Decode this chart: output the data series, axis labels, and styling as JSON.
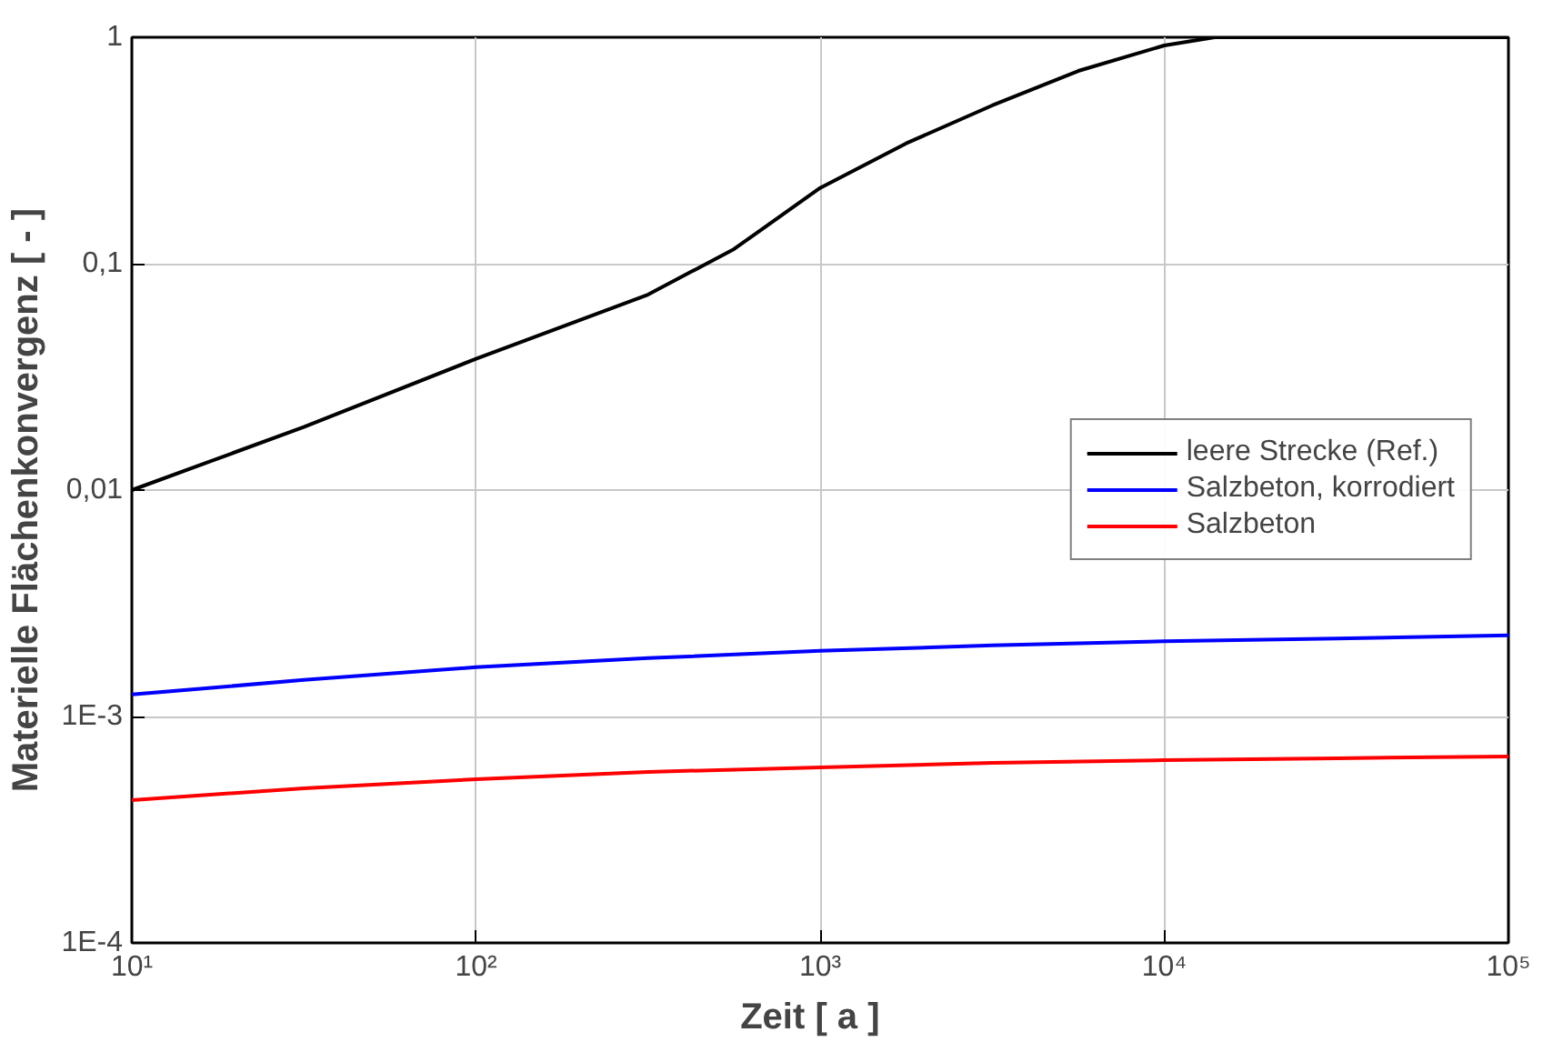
{
  "chart_data": {
    "type": "line",
    "xlabel": "Zeit   [ a ]",
    "ylabel": "Materielle Flächenkonvergenz   [ - ]",
    "log": "xy",
    "grid": true,
    "legend": "right",
    "line_style": "solid",
    "marker": "none",
    "xlim": [
      10,
      100000
    ],
    "ylim": [
      0.0001,
      1
    ],
    "xticks": [
      {
        "value": 10,
        "label": "10¹"
      },
      {
        "value": 100,
        "label": "10²"
      },
      {
        "value": 1000,
        "label": "10³"
      },
      {
        "value": 10000,
        "label": "10⁴"
      },
      {
        "value": 100000,
        "label": "10⁵"
      }
    ],
    "yticks": [
      {
        "value": 0.0001,
        "label": "1E-4"
      },
      {
        "value": 0.001,
        "label": "1E-3"
      },
      {
        "value": 0.01,
        "label": "0,01"
      },
      {
        "value": 0.1,
        "label": "0,1"
      },
      {
        "value": 1,
        "label": "1"
      }
    ],
    "series": [
      {
        "name": "leere Strecke (Ref.)",
        "color": "#000000",
        "x": [
          10,
          31.6,
          100,
          316,
          562,
          1000,
          1778,
          3162,
          5623,
          10000,
          14000,
          100000
        ],
        "values": [
          0.01,
          0.019,
          0.038,
          0.073,
          0.116,
          0.216,
          0.34,
          0.5,
          0.71,
          0.92,
          1.0,
          1.0
        ]
      },
      {
        "name": "Salzbeton, korrodiert",
        "color": "#0000ff",
        "x": [
          10,
          31.6,
          100,
          316,
          1000,
          3162,
          10000,
          31623,
          100000
        ],
        "values": [
          0.00125,
          0.00145,
          0.00165,
          0.00181,
          0.00195,
          0.00206,
          0.00215,
          0.00221,
          0.00228
        ]
      },
      {
        "name": "Salzbeton",
        "color": "#ff0000",
        "x": [
          10,
          31.6,
          100,
          316,
          1000,
          3162,
          10000,
          31623,
          100000
        ],
        "values": [
          0.000427,
          0.000482,
          0.000528,
          0.000569,
          0.000596,
          0.000624,
          0.000641,
          0.000654,
          0.000666
        ]
      }
    ]
  }
}
